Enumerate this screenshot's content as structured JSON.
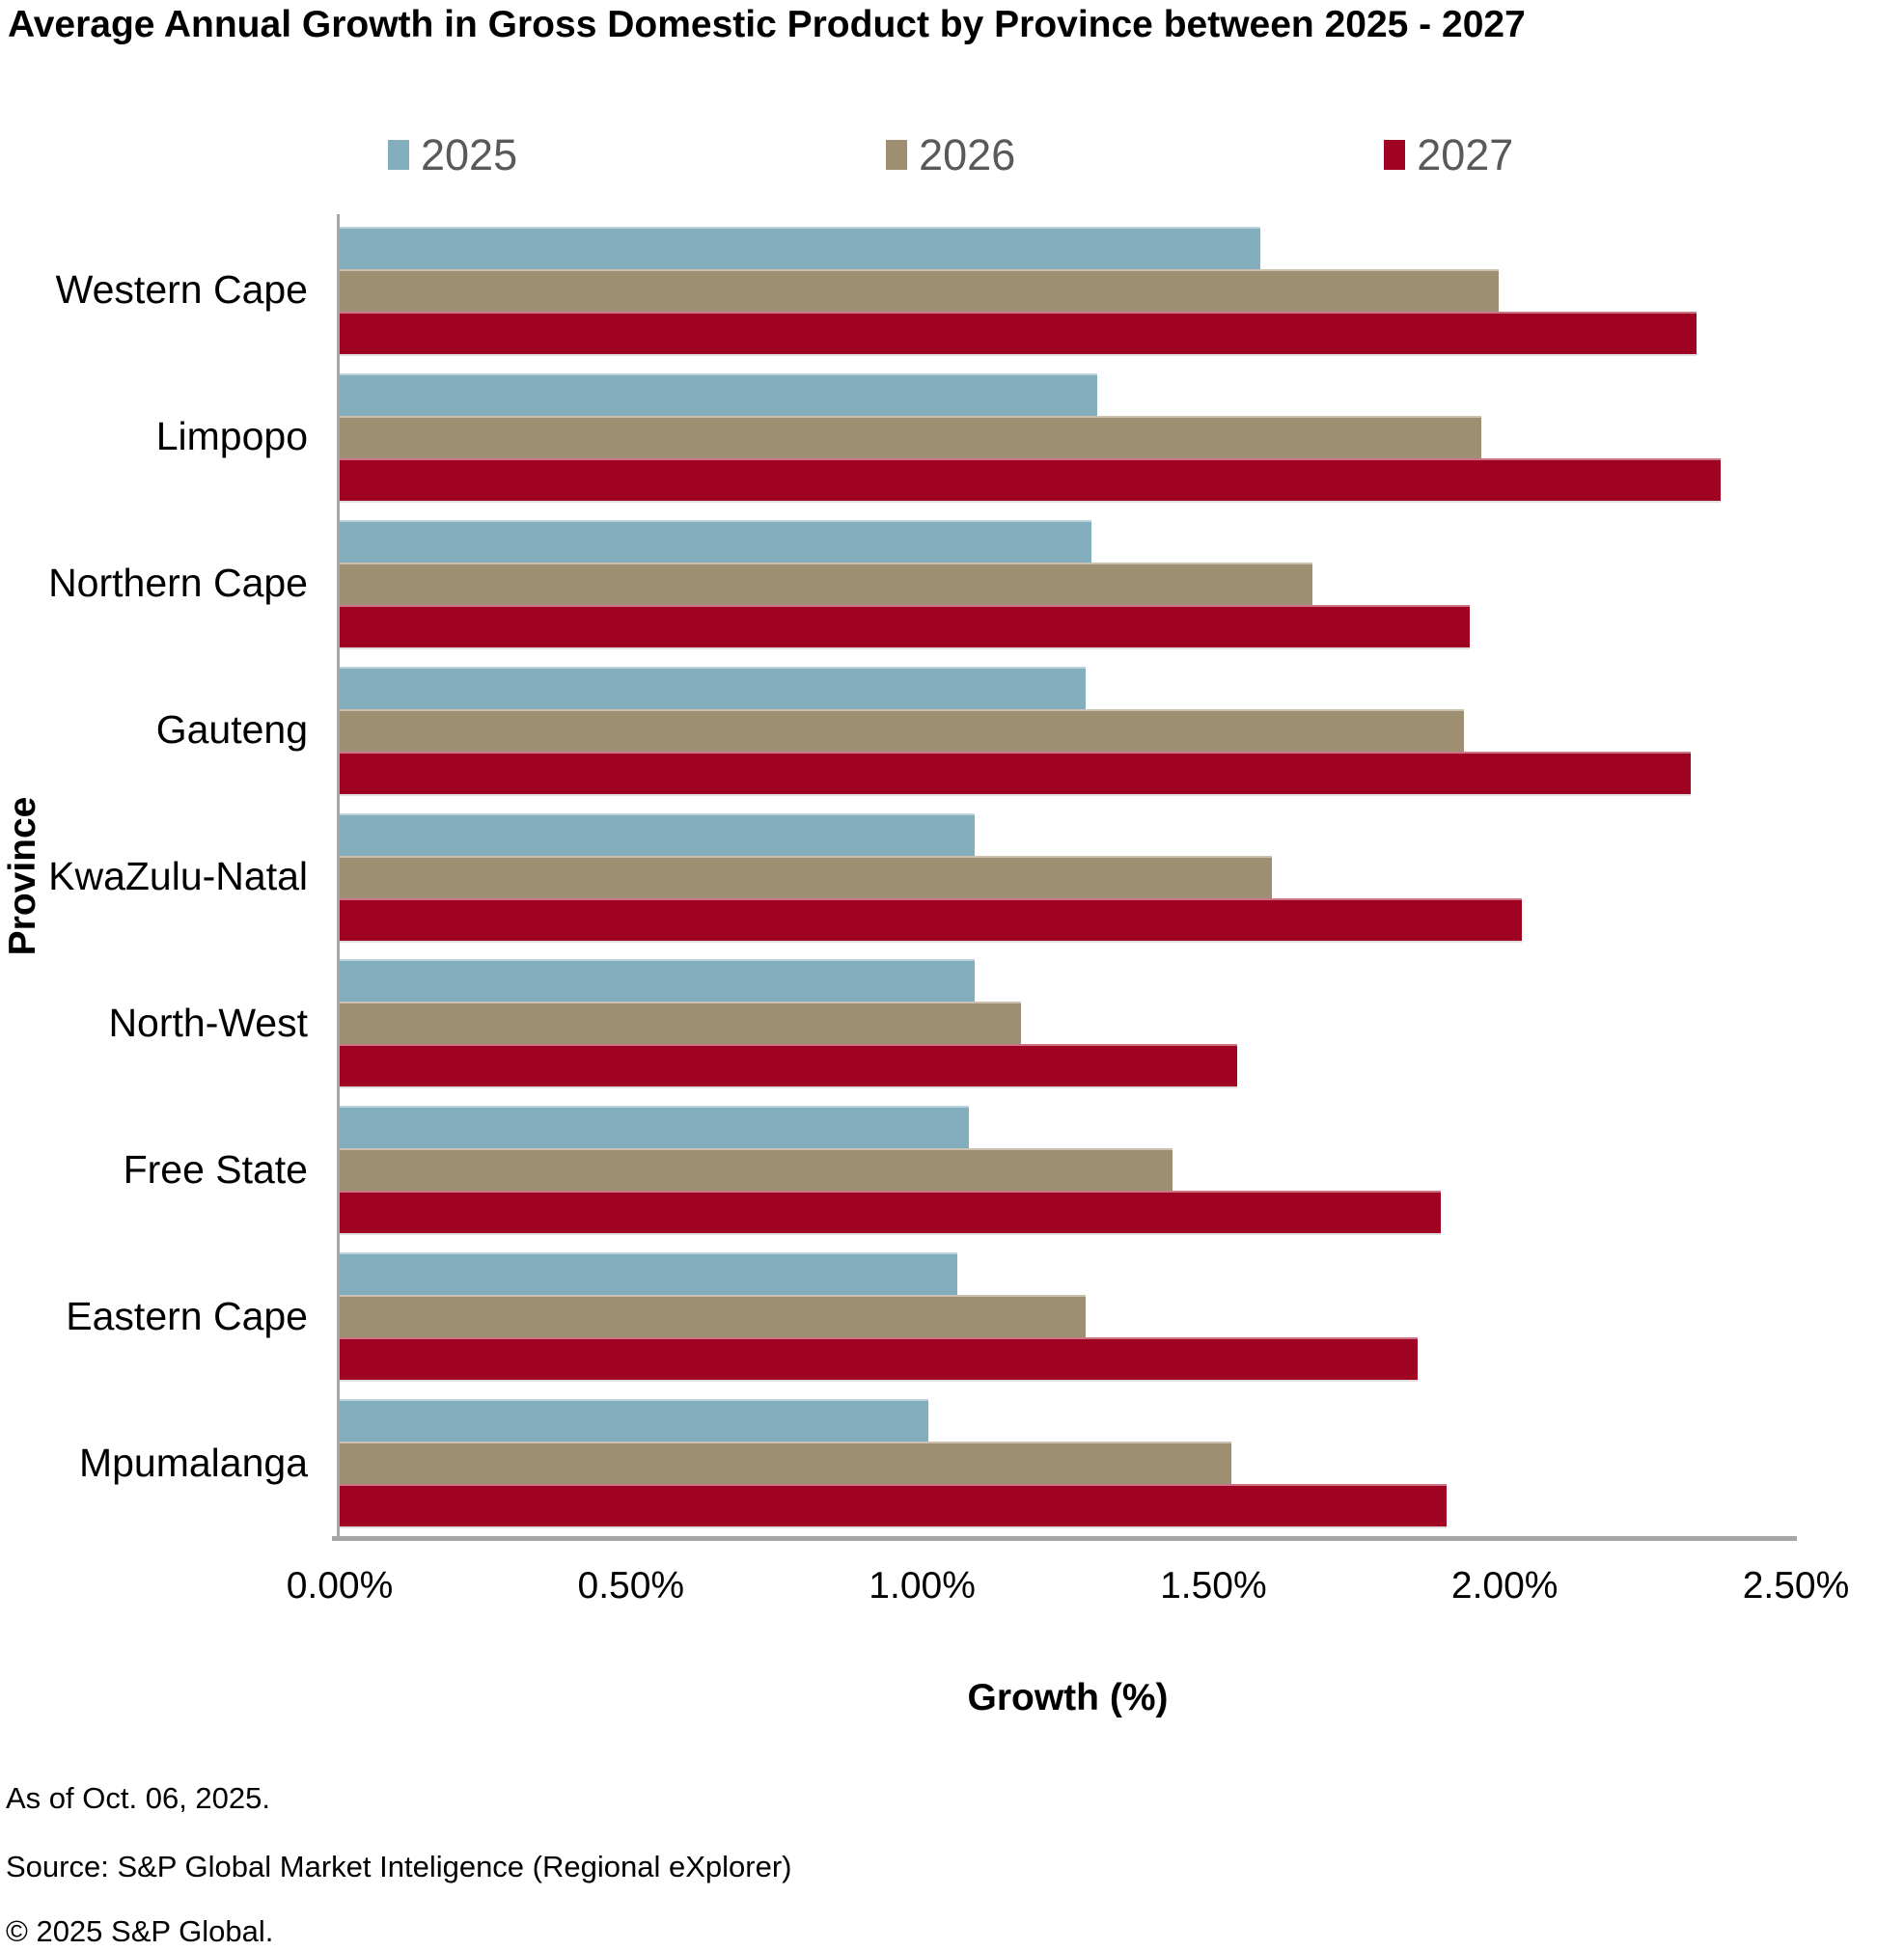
{
  "title": "Average Annual Growth in Gross Domestic Product by Province between 2025 - 2027",
  "chart_data": {
    "type": "bar",
    "orientation": "horizontal",
    "title": "Average Annual Growth in Gross Domestic Product by Province between 2025 - 2027",
    "xlabel": "Growth (%)",
    "ylabel": "Province",
    "xlim": [
      0,
      2.5
    ],
    "xticks": [
      "0.00%",
      "0.50%",
      "1.00%",
      "1.50%",
      "2.00%",
      "2.50%"
    ],
    "grid": false,
    "legend_position": "top",
    "categories": [
      "Western Cape",
      "Limpopo",
      "Northern Cape",
      "Gauteng",
      "KwaZulu-Natal",
      "North-West",
      "Free State",
      "Eastern Cape",
      "Mpumalanga"
    ],
    "series": [
      {
        "name": "2025",
        "color": "#82AEBE",
        "values": [
          1.58,
          1.3,
          1.29,
          1.28,
          1.09,
          1.09,
          1.08,
          1.06,
          1.01
        ]
      },
      {
        "name": "2026",
        "color": "#9E8E72",
        "values": [
          1.99,
          1.96,
          1.67,
          1.93,
          1.6,
          1.17,
          1.43,
          1.28,
          1.53
        ]
      },
      {
        "name": "2027",
        "color": "#A00221",
        "values": [
          2.33,
          2.37,
          1.94,
          2.32,
          2.03,
          1.54,
          1.89,
          1.85,
          1.9
        ]
      }
    ]
  },
  "footer": {
    "as_of": "As of Oct. 06, 2025.",
    "source": "Source: S&P Global Market Inteligence (Regional eXplorer)",
    "copyright": "© 2025 S&P Global."
  },
  "colors": {
    "axis": "#A6A6A6",
    "legend_text": "#595959",
    "text": "#000000",
    "background": "#FFFFFF"
  }
}
